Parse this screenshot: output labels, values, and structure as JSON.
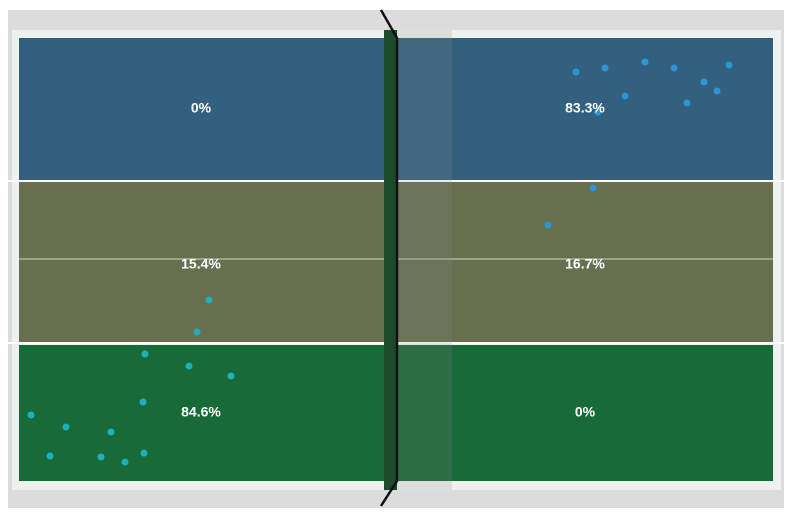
{
  "zones": {
    "left": {
      "top": "0%",
      "middle": "15.4%",
      "bottom": "84.6%"
    },
    "right": {
      "top": "83.3%",
      "middle": "16.7%",
      "bottom": "0%"
    }
  }
}
